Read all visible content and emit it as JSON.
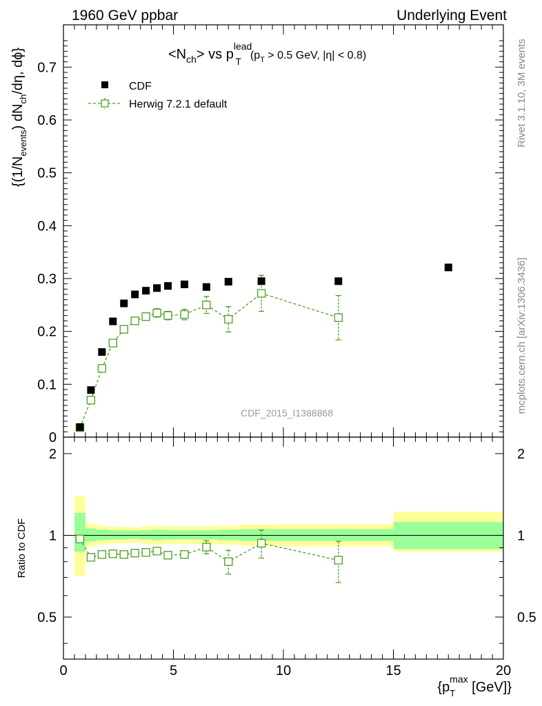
{
  "header": {
    "left": "1960 GeV ppbar",
    "right": "Underlying Event"
  },
  "side_labels": {
    "rivet": "Rivet 3.1.10,  3M events",
    "mcplots": "mcplots.cern.ch [arXiv:1306.3436]"
  },
  "watermark": "CDF_2015_I1388868",
  "colors": {
    "data": "#000000",
    "mc": "#4b9d1f",
    "band_inner": "#99ff99",
    "band_outer": "#ffff99"
  },
  "chart_data": [
    {
      "type": "scatter",
      "title": {
        "main": "<N",
        "main_sub": "ch",
        "main_mid": "> vs p",
        "main_sup": "lead",
        "main_sub2": "T",
        "cut": "(p",
        "cut_sub": "T",
        "cut_rest": " > 0.5 GeV, |η| < 0.8)"
      },
      "ylabel": {
        "a": "{(1/N",
        "a_sub": "events",
        "b": ") dN",
        "b_sub": "ch",
        "c": "/dη, dϕ}"
      },
      "xlim": [
        0,
        20
      ],
      "ylim": [
        0,
        0.78
      ],
      "y_ticks": [
        "0",
        "0.1",
        "0.2",
        "0.3",
        "0.4",
        "0.5",
        "0.6",
        "0.7"
      ],
      "legend_position": "top-left",
      "series": [
        {
          "name": "CDF",
          "marker": "filled-square",
          "x": [
            0.75,
            1.25,
            1.75,
            2.25,
            2.75,
            3.25,
            3.75,
            4.25,
            4.75,
            5.5,
            6.5,
            7.5,
            9.0,
            12.5,
            17.5
          ],
          "y": [
            0.019,
            0.089,
            0.161,
            0.219,
            0.253,
            0.27,
            0.277,
            0.282,
            0.286,
            0.289,
            0.284,
            0.294,
            0.295,
            0.295,
            0.321
          ]
        },
        {
          "name": "Herwig 7.2.1 default",
          "marker": "open-square-dashed",
          "x": [
            0.75,
            1.25,
            1.75,
            2.25,
            2.75,
            3.25,
            3.75,
            4.25,
            4.75,
            5.5,
            6.5,
            7.5,
            9.0,
            12.5
          ],
          "y": [
            0.018,
            0.07,
            0.13,
            0.178,
            0.204,
            0.22,
            0.228,
            0.235,
            0.23,
            0.232,
            0.25,
            0.223,
            0.272,
            0.226
          ],
          "yerr": [
            0.002,
            0.003,
            0.004,
            0.005,
            0.005,
            0.006,
            0.007,
            0.008,
            0.008,
            0.01,
            0.016,
            0.024,
            0.034,
            0.042
          ]
        }
      ]
    },
    {
      "type": "scatter",
      "ylabel": "Ratio to CDF",
      "xlabel": {
        "a": "{p",
        "a_sub": "T",
        "a_sup": "max",
        "b": " [GeV]}"
      },
      "xlim": [
        0,
        20
      ],
      "ylim": [
        0.35,
        2.3
      ],
      "x_ticks": [
        "0",
        "5",
        "10",
        "15",
        "20"
      ],
      "y_ticks": [
        "0.5",
        "1",
        "2"
      ],
      "reference_line": 1,
      "bands": {
        "edges": [
          0.5,
          1.0,
          1.5,
          2.0,
          2.5,
          3.0,
          3.5,
          4.0,
          4.5,
          5.0,
          6.0,
          7.0,
          8.0,
          10.0,
          15.0,
          20.0
        ],
        "inner_lo": [
          0.87,
          0.95,
          0.96,
          0.965,
          0.965,
          0.97,
          0.965,
          0.96,
          0.965,
          0.965,
          0.965,
          0.96,
          0.955,
          0.955,
          0.89
        ],
        "inner_hi": [
          1.21,
          1.06,
          1.05,
          1.045,
          1.045,
          1.04,
          1.045,
          1.05,
          1.045,
          1.045,
          1.045,
          1.05,
          1.055,
          1.055,
          1.12
        ],
        "outer_lo": [
          0.71,
          0.91,
          0.925,
          0.935,
          0.935,
          0.94,
          0.93,
          0.925,
          0.93,
          0.93,
          0.93,
          0.925,
          0.915,
          0.91,
          0.87
        ],
        "outer_hi": [
          1.39,
          1.1,
          1.085,
          1.075,
          1.075,
          1.07,
          1.08,
          1.085,
          1.08,
          1.08,
          1.08,
          1.085,
          1.095,
          1.1,
          1.22
        ]
      },
      "series": [
        {
          "name": "Herwig 7.2.1 default",
          "x": [
            0.75,
            1.25,
            1.75,
            2.25,
            2.75,
            3.25,
            3.75,
            4.25,
            4.75,
            5.5,
            6.5,
            7.5,
            9.0,
            12.5
          ],
          "y": [
            0.97,
            0.83,
            0.85,
            0.855,
            0.85,
            0.86,
            0.865,
            0.875,
            0.845,
            0.85,
            0.905,
            0.8,
            0.935,
            0.81
          ],
          "yerr": [
            0.03,
            0.02,
            0.015,
            0.015,
            0.015,
            0.015,
            0.02,
            0.02,
            0.02,
            0.02,
            0.05,
            0.08,
            0.11,
            0.14
          ]
        }
      ]
    }
  ]
}
